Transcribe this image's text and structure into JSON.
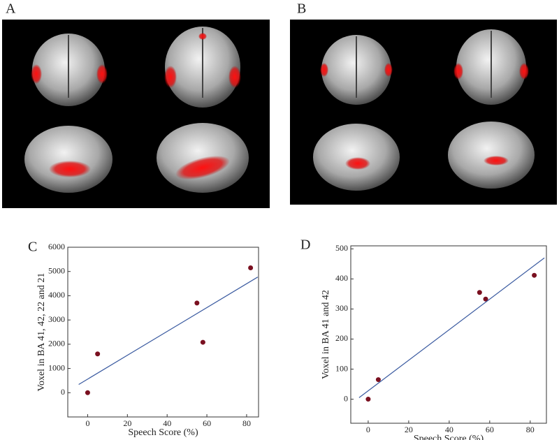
{
  "panels": [
    {
      "label": "A"
    },
    {
      "label": "B"
    }
  ],
  "chart_data": [
    {
      "type": "scatter",
      "label": "C",
      "x_label": "Speech Score (%)",
      "y_label": "Voxel in BA 41, 42, 22 and 21",
      "x": [
        0,
        5,
        55,
        58,
        82
      ],
      "y": [
        0,
        1600,
        3700,
        2080,
        5150
      ],
      "color": "#7a1020",
      "fit_line": {
        "x": [
          -4.5,
          85.6
        ],
        "y": [
          340,
          4770
        ],
        "color": "#3a5aa0"
      },
      "xlim": [
        -10,
        86
      ],
      "ylim": [
        -1000,
        6000
      ],
      "xticks": [
        0,
        20,
        40,
        60,
        80
      ],
      "yticks": [
        0,
        1000,
        2000,
        3000,
        4000,
        5000,
        6000
      ]
    },
    {
      "type": "scatter",
      "label": "D",
      "x_label": "Speech Score (%)",
      "y_label": "Voxel in BA 41 and 42",
      "x": [
        0,
        5,
        55,
        58,
        82
      ],
      "y": [
        0,
        65,
        355,
        333,
        412
      ],
      "color": "#7a1020",
      "fit_line": {
        "x": [
          -4.5,
          87
        ],
        "y": [
          5,
          470
        ],
        "color": "#3a5aa0"
      },
      "xlim": [
        -8.6,
        88
      ],
      "ylim": [
        -80,
        510
      ],
      "xticks": [
        0,
        20,
        40,
        60,
        80
      ],
      "yticks": [
        0,
        100,
        200,
        300,
        400,
        500
      ]
    }
  ]
}
